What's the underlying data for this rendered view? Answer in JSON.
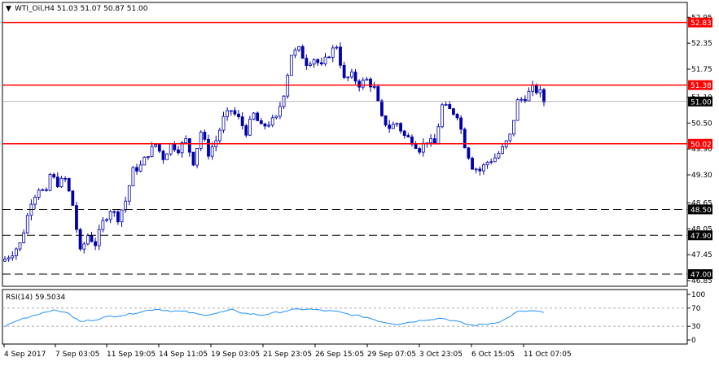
{
  "header": {
    "symbol_line": "WTI_Oil,H4  51.03 51.07 50.87 51.00",
    "arrow": "▼"
  },
  "rsi": {
    "label": "RSI(14) 59.5034",
    "ticks": [
      "100",
      "70",
      "30",
      "0"
    ],
    "color": "#1e90ff"
  },
  "colors": {
    "candle": "#0000aa",
    "resistance": "#ff0000",
    "support": "#000000",
    "current": "#a0a0a0"
  },
  "chart_data": {
    "type": "candlestick",
    "title": "WTI_Oil,H4",
    "ylim": [
      46.85,
      53.05
    ],
    "y_ticks": [
      "52.95",
      "52.35",
      "51.75",
      "51.10",
      "50.50",
      "49.90",
      "49.30",
      "48.65",
      "48.05",
      "47.45",
      "46.85"
    ],
    "x_labels": [
      "4 Sep 2017",
      "7 Sep 03:05",
      "11 Sep 19:05",
      "14 Sep 11:05",
      "19 Sep 03:05",
      "21 Sep 23:05",
      "26 Sep 15:05",
      "29 Sep 07:05",
      "3 Oct 23:05",
      "6 Oct 15:05",
      "11 Oct 07:05"
    ],
    "horizontal_lines": [
      {
        "value": 52.83,
        "label": "52.83",
        "style": "solid",
        "color": "#ff0000"
      },
      {
        "value": 51.38,
        "label": "51.38",
        "style": "solid",
        "color": "#ff0000"
      },
      {
        "value": 50.02,
        "label": "50.02",
        "style": "solid",
        "color": "#ff0000"
      },
      {
        "value": 48.5,
        "label": "48.50",
        "style": "dashed",
        "color": "#000000"
      },
      {
        "value": 47.9,
        "label": "47.90",
        "style": "dashed",
        "color": "#000000"
      },
      {
        "value": 47.0,
        "label": "47.00",
        "style": "dashed",
        "color": "#000000"
      }
    ],
    "last_price": {
      "value": 51.0,
      "label": "51.00"
    },
    "close_path": [
      [
        0,
        47.35
      ],
      [
        2,
        47.5
      ],
      [
        4,
        47.7
      ],
      [
        5,
        48.0
      ],
      [
        7,
        48.7
      ],
      [
        9,
        49.0
      ],
      [
        11,
        48.85
      ],
      [
        12,
        49.3
      ],
      [
        14,
        49.1
      ],
      [
        16,
        49.2
      ],
      [
        18,
        48.6
      ],
      [
        20,
        47.5
      ],
      [
        22,
        47.9
      ],
      [
        24,
        47.7
      ],
      [
        26,
        48.2
      ],
      [
        28,
        48.5
      ],
      [
        30,
        48.3
      ],
      [
        32,
        48.7
      ],
      [
        34,
        49.4
      ],
      [
        36,
        49.5
      ],
      [
        38,
        49.8
      ],
      [
        40,
        50.0
      ],
      [
        42,
        49.7
      ],
      [
        44,
        50.0
      ],
      [
        46,
        49.9
      ],
      [
        48,
        50.1
      ],
      [
        50,
        49.6
      ],
      [
        52,
        50.3
      ],
      [
        54,
        49.8
      ],
      [
        56,
        50.1
      ],
      [
        58,
        50.6
      ],
      [
        60,
        50.8
      ],
      [
        62,
        50.6
      ],
      [
        64,
        50.3
      ],
      [
        66,
        50.7
      ],
      [
        68,
        50.4
      ],
      [
        70,
        50.5
      ],
      [
        72,
        50.6
      ],
      [
        74,
        51.2
      ],
      [
        76,
        52.1
      ],
      [
        78,
        52.2
      ],
      [
        80,
        51.9
      ],
      [
        82,
        52.0
      ],
      [
        84,
        51.8
      ],
      [
        86,
        52.1
      ],
      [
        88,
        52.3
      ],
      [
        90,
        51.5
      ],
      [
        92,
        51.6
      ],
      [
        94,
        51.4
      ],
      [
        96,
        51.5
      ],
      [
        98,
        51.3
      ],
      [
        100,
        50.6
      ],
      [
        102,
        50.4
      ],
      [
        104,
        50.5
      ],
      [
        106,
        50.2
      ],
      [
        108,
        50.1
      ],
      [
        110,
        49.9
      ],
      [
        112,
        50.1
      ],
      [
        114,
        50.0
      ],
      [
        116,
        50.9
      ],
      [
        118,
        50.8
      ],
      [
        120,
        50.7
      ],
      [
        122,
        50.0
      ],
      [
        124,
        49.5
      ],
      [
        126,
        49.4
      ],
      [
        128,
        49.6
      ],
      [
        130,
        49.7
      ],
      [
        132,
        49.9
      ],
      [
        134,
        50.2
      ],
      [
        136,
        51.0
      ],
      [
        138,
        51.1
      ],
      [
        140,
        51.3
      ],
      [
        142,
        51.2
      ],
      [
        143,
        51.0
      ]
    ],
    "rsi_path": [
      [
        0,
        30
      ],
      [
        4,
        45
      ],
      [
        8,
        55
      ],
      [
        12,
        65
      ],
      [
        16,
        62
      ],
      [
        20,
        40
      ],
      [
        24,
        45
      ],
      [
        28,
        52
      ],
      [
        32,
        55
      ],
      [
        36,
        62
      ],
      [
        40,
        68
      ],
      [
        44,
        64
      ],
      [
        48,
        62
      ],
      [
        52,
        55
      ],
      [
        56,
        58
      ],
      [
        60,
        66
      ],
      [
        64,
        58
      ],
      [
        68,
        55
      ],
      [
        72,
        60
      ],
      [
        76,
        66
      ],
      [
        80,
        68
      ],
      [
        84,
        65
      ],
      [
        88,
        62
      ],
      [
        92,
        55
      ],
      [
        96,
        50
      ],
      [
        100,
        40
      ],
      [
        104,
        35
      ],
      [
        108,
        40
      ],
      [
        112,
        45
      ],
      [
        116,
        48
      ],
      [
        120,
        40
      ],
      [
        124,
        32
      ],
      [
        128,
        35
      ],
      [
        132,
        42
      ],
      [
        136,
        62
      ],
      [
        140,
        64
      ],
      [
        143,
        59.5
      ]
    ]
  }
}
